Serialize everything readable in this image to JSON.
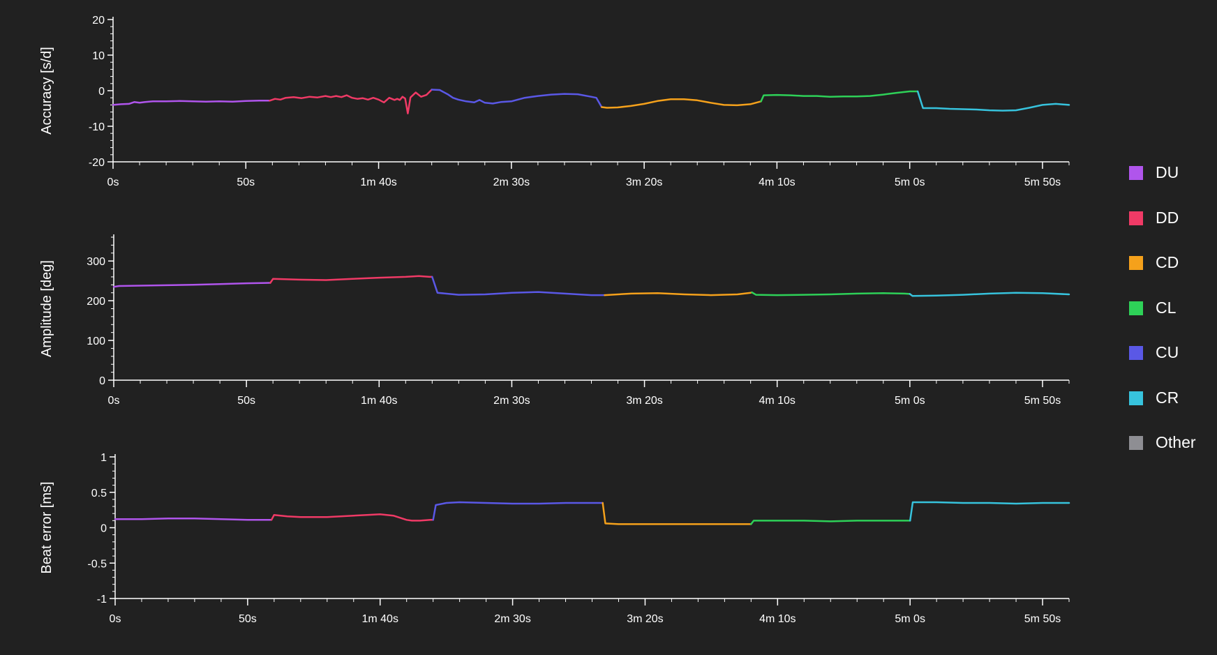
{
  "chart_data": [
    {
      "type": "line",
      "ylabel": "Accuracy [s/d]",
      "ylim": [
        -20,
        20
      ],
      "yticks": [
        20,
        10,
        0,
        -10,
        -20
      ],
      "xlim": [
        0,
        360
      ],
      "xticks": [
        0,
        50,
        100,
        150,
        200,
        250,
        300,
        350
      ],
      "xticklabels": [
        "0s",
        "50s",
        "1m 40s",
        "2m 30s",
        "3m 20s",
        "4m 10s",
        "5m 0s",
        "5m 50s"
      ],
      "series": [
        {
          "name": "DU",
          "x": [
            0,
            3,
            6,
            8,
            10,
            12,
            15,
            20,
            25,
            30,
            35,
            40,
            45,
            50,
            55,
            59
          ],
          "y": [
            -4.0,
            -3.8,
            -3.7,
            -3.2,
            -3.4,
            -3.2,
            -3.0,
            -3.0,
            -2.9,
            -3.0,
            -3.1,
            -3.0,
            -3.1,
            -2.9,
            -2.8,
            -2.8
          ]
        },
        {
          "name": "DD",
          "x": [
            59,
            61,
            63,
            65,
            68,
            71,
            74,
            77,
            80,
            82,
            84,
            86,
            88,
            90,
            92,
            94,
            96,
            98,
            100,
            102,
            104,
            106,
            107,
            108,
            109,
            110,
            111,
            112,
            114,
            116,
            118,
            120
          ],
          "y": [
            -2.8,
            -2.3,
            -2.5,
            -2.0,
            -1.8,
            -2.1,
            -1.7,
            -1.9,
            -1.5,
            -1.8,
            -1.5,
            -1.8,
            -1.3,
            -2.0,
            -2.3,
            -2.1,
            -2.5,
            -2.0,
            -2.5,
            -3.3,
            -2.0,
            -2.6,
            -2.3,
            -2.6,
            -1.7,
            -2.2,
            -6.4,
            -1.9,
            -0.5,
            -1.7,
            -1.2,
            0.3
          ]
        },
        {
          "name": "CU",
          "x": [
            120,
            123,
            126,
            128,
            130,
            133,
            136,
            138,
            140,
            143,
            146,
            150,
            155,
            160,
            165,
            170,
            175,
            180,
            182,
            184
          ],
          "y": [
            0.3,
            0.2,
            -1.0,
            -2.0,
            -2.5,
            -3.0,
            -3.3,
            -2.6,
            -3.4,
            -3.6,
            -3.2,
            -3.0,
            -2.0,
            -1.5,
            -1.1,
            -0.9,
            -1.0,
            -1.7,
            -2.0,
            -4.6
          ]
        },
        {
          "name": "CD",
          "x": [
            184,
            186,
            190,
            195,
            200,
            205,
            210,
            215,
            220,
            225,
            230,
            235,
            240,
            244
          ],
          "y": [
            -4.6,
            -4.8,
            -4.7,
            -4.3,
            -3.7,
            -2.9,
            -2.4,
            -2.4,
            -2.7,
            -3.4,
            -4.0,
            -4.1,
            -3.8,
            -3.0
          ]
        },
        {
          "name": "CL",
          "x": [
            244,
            245,
            250,
            255,
            260,
            265,
            270,
            275,
            280,
            285,
            290,
            295,
            300,
            303
          ],
          "y": [
            -3.0,
            -1.3,
            -1.2,
            -1.3,
            -1.5,
            -1.5,
            -1.7,
            -1.6,
            -1.6,
            -1.5,
            -1.1,
            -0.6,
            -0.2,
            -0.2
          ]
        },
        {
          "name": "CR",
          "x": [
            303,
            305,
            310,
            315,
            320,
            325,
            330,
            335,
            340,
            345,
            350,
            355,
            360
          ],
          "y": [
            -0.2,
            -4.9,
            -4.9,
            -5.1,
            -5.2,
            -5.3,
            -5.5,
            -5.6,
            -5.5,
            -4.8,
            -4.0,
            -3.7,
            -4.0
          ]
        }
      ]
    },
    {
      "type": "line",
      "ylabel": "Amplitude [deg]",
      "ylim": [
        0,
        360
      ],
      "yticks": [
        300,
        200,
        100,
        0
      ],
      "xlim": [
        0,
        360
      ],
      "xticks": [
        0,
        50,
        100,
        150,
        200,
        250,
        300,
        350
      ],
      "xticklabels": [
        "0s",
        "50s",
        "1m 40s",
        "2m 30s",
        "3m 20s",
        "4m 10s",
        "5m 0s",
        "5m 50s"
      ],
      "series": [
        {
          "name": "DU",
          "x": [
            0,
            2,
            10,
            20,
            30,
            40,
            50,
            59
          ],
          "y": [
            235,
            237,
            238,
            239,
            240,
            242,
            244,
            245
          ]
        },
        {
          "name": "DD",
          "x": [
            59,
            60,
            70,
            80,
            90,
            100,
            110,
            115,
            119,
            120
          ],
          "y": [
            245,
            255,
            253,
            252,
            255,
            258,
            260,
            262,
            260,
            260
          ]
        },
        {
          "name": "CU",
          "x": [
            120,
            122,
            130,
            140,
            150,
            160,
            170,
            180,
            185
          ],
          "y": [
            260,
            220,
            215,
            216,
            220,
            222,
            218,
            214,
            214
          ]
        },
        {
          "name": "CD",
          "x": [
            185,
            195,
            205,
            215,
            225,
            235,
            240,
            240.5
          ],
          "y": [
            214,
            218,
            219,
            216,
            214,
            216,
            220,
            221
          ]
        },
        {
          "name": "CL",
          "x": [
            240.5,
            242,
            250,
            260,
            270,
            280,
            290,
            298,
            300
          ],
          "y": [
            221,
            215,
            214,
            215,
            216,
            218,
            219,
            218,
            217
          ]
        },
        {
          "name": "CR",
          "x": [
            300,
            301,
            310,
            320,
            330,
            340,
            350,
            360
          ],
          "y": [
            217,
            212,
            213,
            215,
            218,
            220,
            219,
            216
          ]
        }
      ]
    },
    {
      "type": "line",
      "ylabel": "Beat error [ms]",
      "ylim": [
        -1,
        1
      ],
      "yticks": [
        1,
        0.5,
        0,
        -0.5,
        -1
      ],
      "yticklabels": [
        "1",
        "0.5",
        "0",
        "-0.5",
        "-1"
      ],
      "xlim": [
        0,
        360
      ],
      "xticks": [
        0,
        50,
        100,
        150,
        200,
        250,
        300,
        350
      ],
      "xticklabels": [
        "0s",
        "50s",
        "1m 40s",
        "2m 30s",
        "3m 20s",
        "4m 10s",
        "5m 0s",
        "5m 50s"
      ],
      "series": [
        {
          "name": "DU",
          "x": [
            0,
            10,
            20,
            30,
            40,
            50,
            59
          ],
          "y": [
            0.12,
            0.12,
            0.13,
            0.13,
            0.12,
            0.11,
            0.11
          ]
        },
        {
          "name": "DD",
          "x": [
            59,
            60,
            65,
            70,
            75,
            80,
            85,
            90,
            95,
            100,
            105,
            110,
            112,
            115,
            119,
            120
          ],
          "y": [
            0.11,
            0.18,
            0.16,
            0.15,
            0.15,
            0.15,
            0.16,
            0.17,
            0.18,
            0.19,
            0.17,
            0.11,
            0.1,
            0.1,
            0.11,
            0.11
          ]
        },
        {
          "name": "CU",
          "x": [
            120,
            121,
            125,
            130,
            140,
            150,
            160,
            170,
            180,
            184
          ],
          "y": [
            0.11,
            0.32,
            0.35,
            0.36,
            0.35,
            0.34,
            0.34,
            0.35,
            0.35,
            0.35
          ]
        },
        {
          "name": "CD",
          "x": [
            184,
            185,
            190,
            200,
            210,
            220,
            230,
            240
          ],
          "y": [
            0.35,
            0.06,
            0.05,
            0.05,
            0.05,
            0.05,
            0.05,
            0.05
          ]
        },
        {
          "name": "CL",
          "x": [
            240,
            241,
            250,
            260,
            270,
            280,
            290,
            298,
            300
          ],
          "y": [
            0.05,
            0.1,
            0.1,
            0.1,
            0.09,
            0.1,
            0.1,
            0.1,
            0.1
          ]
        },
        {
          "name": "CR",
          "x": [
            300,
            301,
            310,
            320,
            330,
            340,
            350,
            360
          ],
          "y": [
            0.1,
            0.36,
            0.36,
            0.35,
            0.35,
            0.34,
            0.35,
            0.35
          ]
        }
      ]
    }
  ],
  "legend": [
    {
      "label": "DU",
      "color": "#b055ec"
    },
    {
      "label": "DD",
      "color": "#f03a66"
    },
    {
      "label": "CD",
      "color": "#f5a11b"
    },
    {
      "label": "CL",
      "color": "#2ed158"
    },
    {
      "label": "CU",
      "color": "#5a58e6"
    },
    {
      "label": "CR",
      "color": "#37c3dd"
    },
    {
      "label": "Other",
      "color": "#8e8e93"
    }
  ]
}
